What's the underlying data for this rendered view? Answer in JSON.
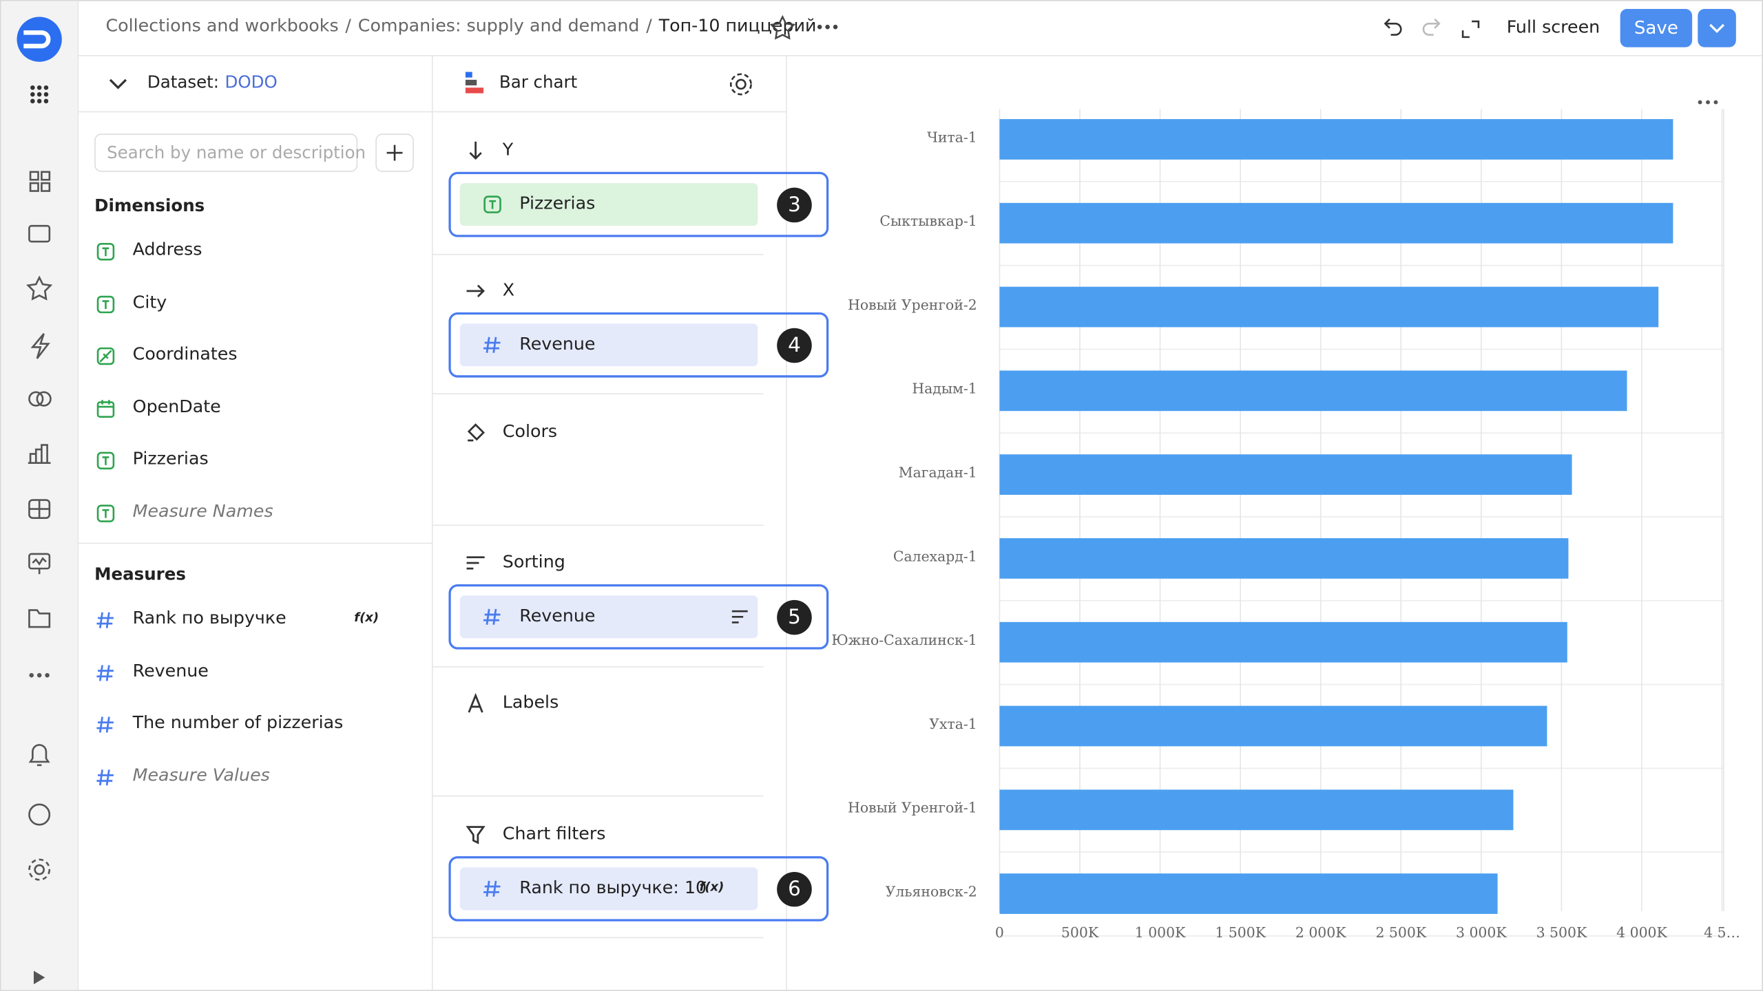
{
  "header": {
    "breadcrumbs": [
      "Collections and workbooks",
      "Companies: supply and demand",
      "Топ-10 пиццерий"
    ],
    "separator": "/",
    "full_screen": "Full screen",
    "save": "Save"
  },
  "dataset": {
    "label": "Dataset:",
    "name": "DODO",
    "search_placeholder": "Search by name or description",
    "dimensions": {
      "title": "Dimensions",
      "items": [
        "Address",
        "City",
        "Coordinates",
        "OpenDate",
        "Pizzerias",
        "Measure Names"
      ]
    },
    "measures": {
      "title": "Measures",
      "items": [
        "Rank по выручке",
        "Revenue",
        "The number of pizzerias",
        "Measure Values"
      ]
    },
    "formula_badge": "f(x)"
  },
  "visualization": {
    "type_name": "Bar chart",
    "sections": [
      {
        "title": "Y",
        "field": "Pizzerias",
        "badge": 3
      },
      {
        "title": "X",
        "field": "Revenue",
        "badge": 4
      },
      {
        "title": "Colors"
      },
      {
        "title": "Sorting",
        "field": "Revenue",
        "badge": 5
      },
      {
        "title": "Labels"
      },
      {
        "title": "Chart filters",
        "field": "Rank по выручке: 10",
        "badge": 6
      }
    ]
  },
  "chart": {
    "type": "bar",
    "orientation": "horizontal",
    "color": "#4c9ff0",
    "grid": true,
    "categories": [
      "Чита-1",
      "Сыктывкар-1",
      "Новый Уренгой-2",
      "Надым-1",
      "Магадан-1",
      "Салехард-1",
      "Южно-Сахалинск-1",
      "Ухта-1",
      "Новый Уренгой-1",
      "Ульяновск-2"
    ],
    "values": [
      4195000,
      4195000,
      4104000,
      3908000,
      3565000,
      3543000,
      3536000,
      3410000,
      3200000,
      3102000
    ],
    "xlim": [
      0,
      4510000
    ],
    "xticks": [
      0,
      {
        "value": 500000,
        "label": "500K"
      },
      {
        "value": 1000000,
        "label": "1 000K"
      },
      {
        "value": 1500000,
        "label": "1 500K"
      },
      {
        "value": 2000000,
        "label": "2 000K"
      },
      {
        "value": 2500000,
        "label": "2 500K"
      },
      {
        "value": 3000000,
        "label": "3 000K"
      },
      {
        "value": 3500000,
        "label": "3 500K"
      },
      {
        "value": 4000000,
        "label": "4 000K"
      },
      {
        "value": 4500000,
        "label": "4 5…"
      }
    ]
  }
}
